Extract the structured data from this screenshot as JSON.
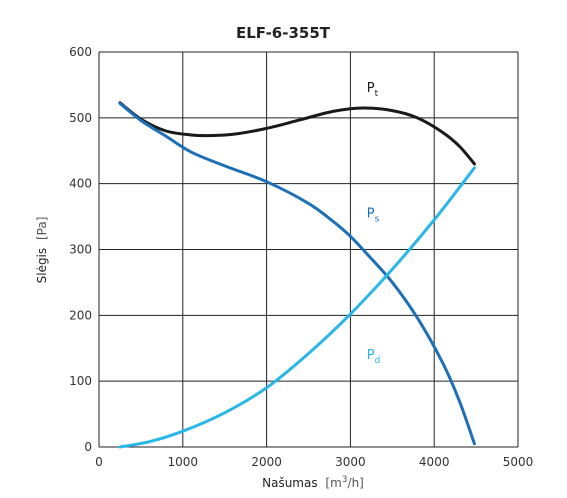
{
  "chart_data": {
    "type": "line",
    "title": "ELF-6-355T",
    "xlabel": "Našumas",
    "xlabel_unit_pre": "[m",
    "xlabel_unit_sup": "3",
    "xlabel_unit_post": "/h]",
    "ylabel": "Slėgis",
    "ylabel_unit": "[Pa]",
    "xlim": [
      0,
      5000
    ],
    "ylim": [
      0,
      600
    ],
    "x_ticks": [
      0,
      1000,
      2000,
      3000,
      4000,
      5000
    ],
    "y_ticks": [
      0,
      100,
      200,
      300,
      400,
      500,
      600
    ],
    "grid": true,
    "series": [
      {
        "name": "Pt",
        "base": "P",
        "sub": "t",
        "color": "#1a1a1a",
        "label_pos": [
          3100,
          545
        ],
        "x": [
          250,
          500,
          800,
          1100,
          1300,
          1600,
          2000,
          2400,
          2800,
          3150,
          3500,
          3800,
          4100,
          4300,
          4480
        ],
        "y": [
          523,
          498,
          480,
          474,
          473,
          475,
          484,
          497,
          510,
          515,
          511,
          500,
          478,
          457,
          430
        ]
      },
      {
        "name": "Ps",
        "base": "P",
        "sub": "s",
        "color": "#1d6fb8",
        "label_pos": [
          3100,
          355
        ],
        "x": [
          250,
          500,
          800,
          1100,
          1500,
          2000,
          2500,
          2800,
          3000,
          3200,
          3500,
          3800,
          4100,
          4300,
          4480
        ],
        "y": [
          522,
          496,
          472,
          448,
          427,
          403,
          370,
          342,
          320,
          293,
          250,
          196,
          128,
          70,
          5
        ]
      },
      {
        "name": "Pd",
        "base": "P",
        "sub": "d",
        "color": "#29b6e8",
        "label_pos": [
          3100,
          140
        ],
        "x": [
          250,
          600,
          1000,
          1500,
          2000,
          2500,
          3000,
          3500,
          4000,
          4480
        ],
        "y": [
          0,
          8,
          24,
          52,
          90,
          142,
          202,
          270,
          345,
          424
        ]
      }
    ]
  }
}
